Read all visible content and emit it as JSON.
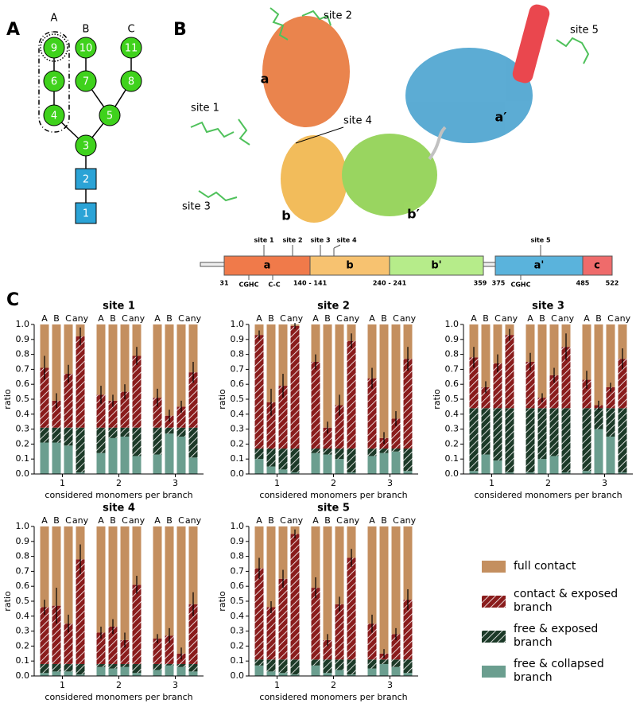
{
  "panel_labels": [
    "A",
    "B",
    "C"
  ],
  "glycan": {
    "branches": [
      "A",
      "B",
      "C"
    ],
    "nodes": [
      "9",
      "10",
      "11",
      "6",
      "7",
      "8",
      "4",
      "5",
      "3",
      "2",
      "1"
    ]
  },
  "structure": {
    "sites": [
      "site 2",
      "site 1",
      "site 4",
      "site 3",
      "site 5"
    ],
    "domains": [
      "a",
      "b",
      "b′",
      "a′"
    ]
  },
  "domain_bar": {
    "segments": [
      "a",
      "b",
      "b'",
      "a'",
      "c"
    ],
    "boundaries": [
      "31",
      "140 - 141",
      "240 - 241",
      "359",
      "375",
      "485",
      "522"
    ],
    "motifs": [
      "CGHC",
      "C-C",
      "CGHC"
    ],
    "sites": [
      "site 1",
      "site 2",
      "site 3",
      "site 4",
      "site 5"
    ]
  },
  "chart_data": [
    {
      "type": "stacked-bar",
      "title": "site 1",
      "ylabel": "ratio",
      "xlabel": "considered monomers per branch",
      "groups": [
        "1",
        "2",
        "3"
      ],
      "categories": [
        "A",
        "B",
        "C",
        "any",
        "A",
        "B",
        "C",
        "any",
        "A",
        "B",
        "C",
        "any"
      ],
      "ylim": [
        0,
        1
      ],
      "yticks": [
        {
          "value": 0,
          "label": "0.0"
        },
        0.1,
        0.2,
        0.3,
        0.4,
        0.5,
        0.6,
        0.7,
        0.8,
        0.9,
        {
          "value": 1,
          "label": "1.0"
        }
      ],
      "series": [
        {
          "name": "free & collapsed branch",
          "color": "#6b9e8f",
          "hatch": false,
          "values": [
            0.21,
            0.21,
            0.19,
            0.01,
            0.14,
            0.24,
            0.25,
            0.12,
            0.13,
            0.27,
            0.25,
            0.11
          ]
        },
        {
          "name": "free & exposed branch",
          "color": "#1c3a28",
          "hatch": true,
          "values": [
            0.1,
            0.1,
            0.12,
            0.3,
            0.17,
            0.07,
            0.06,
            0.19,
            0.18,
            0.04,
            0.06,
            0.2
          ]
        },
        {
          "name": "contact & exposed branch",
          "color": "#8a1c1c",
          "hatch": true,
          "values": [
            0.4,
            0.18,
            0.36,
            0.61,
            0.22,
            0.18,
            0.24,
            0.48,
            0.2,
            0.08,
            0.14,
            0.37
          ],
          "errors": [
            0.08,
            0.05,
            0.06,
            0.06,
            0.06,
            0.04,
            0.05,
            0.06,
            0.06,
            0.04,
            0.04,
            0.07
          ]
        },
        {
          "name": "full contact",
          "color": "#c48f5f",
          "hatch": false,
          "values": [
            0.29,
            0.51,
            0.33,
            0.08,
            0.47,
            0.51,
            0.45,
            0.21,
            0.49,
            0.61,
            0.55,
            0.32
          ]
        }
      ]
    },
    {
      "type": "stacked-bar",
      "title": "site 2",
      "ylabel": "ratio",
      "xlabel": "considered monomers per branch",
      "groups": [
        "1",
        "2",
        "3"
      ],
      "categories": [
        "A",
        "B",
        "C",
        "any",
        "A",
        "B",
        "C",
        "any",
        "A",
        "B",
        "C",
        "any"
      ],
      "ylim": [
        0,
        1
      ],
      "yticks": [
        {
          "value": 0,
          "label": "0.0"
        },
        0.1,
        0.2,
        0.3,
        0.4,
        0.5,
        0.6,
        0.7,
        0.8,
        0.9,
        {
          "value": 1,
          "label": "1.0"
        }
      ],
      "series": [
        {
          "name": "free & collapsed branch",
          "color": "#6b9e8f",
          "hatch": false,
          "values": [
            0.1,
            0.05,
            0.03,
            0.01,
            0.14,
            0.13,
            0.1,
            0.01,
            0.12,
            0.14,
            0.15,
            0.02
          ]
        },
        {
          "name": "free & exposed branch",
          "color": "#1c3a28",
          "hatch": true,
          "values": [
            0.07,
            0.12,
            0.14,
            0.16,
            0.03,
            0.04,
            0.07,
            0.16,
            0.05,
            0.03,
            0.02,
            0.15
          ]
        },
        {
          "name": "contact & exposed branch",
          "color": "#8a1c1c",
          "hatch": true,
          "values": [
            0.76,
            0.31,
            0.42,
            0.82,
            0.58,
            0.14,
            0.29,
            0.72,
            0.47,
            0.07,
            0.2,
            0.6
          ],
          "errors": [
            0.03,
            0.09,
            0.08,
            0.02,
            0.05,
            0.04,
            0.07,
            0.05,
            0.07,
            0.04,
            0.05,
            0.08
          ]
        },
        {
          "name": "full contact",
          "color": "#c48f5f",
          "hatch": false,
          "values": [
            0.07,
            0.52,
            0.41,
            0.01,
            0.25,
            0.69,
            0.54,
            0.11,
            0.36,
            0.76,
            0.63,
            0.23
          ]
        }
      ]
    },
    {
      "type": "stacked-bar",
      "title": "site 3",
      "ylabel": "ratio",
      "xlabel": "considered monomers per branch",
      "groups": [
        "1",
        "2",
        "3"
      ],
      "categories": [
        "A",
        "B",
        "C",
        "any",
        "A",
        "B",
        "C",
        "any",
        "A",
        "B",
        "C",
        "any"
      ],
      "ylim": [
        0,
        1
      ],
      "yticks": [
        {
          "value": 0,
          "label": "0.0"
        },
        0.1,
        0.2,
        0.3,
        0.4,
        0.5,
        0.6,
        0.7,
        0.8,
        0.9,
        {
          "value": 1,
          "label": "1.0"
        }
      ],
      "series": [
        {
          "name": "free & collapsed branch",
          "color": "#6b9e8f",
          "hatch": false,
          "values": [
            0.02,
            0.13,
            0.09,
            0.01,
            0.01,
            0.1,
            0.12,
            0.01,
            0.02,
            0.3,
            0.25,
            0.01
          ]
        },
        {
          "name": "free & exposed branch",
          "color": "#1c3a28",
          "hatch": true,
          "values": [
            0.42,
            0.31,
            0.35,
            0.43,
            0.43,
            0.34,
            0.32,
            0.43,
            0.42,
            0.14,
            0.19,
            0.43
          ]
        },
        {
          "name": "contact & exposed branch",
          "color": "#8a1c1c",
          "hatch": true,
          "values": [
            0.34,
            0.14,
            0.3,
            0.49,
            0.31,
            0.07,
            0.22,
            0.41,
            0.19,
            0.02,
            0.14,
            0.33
          ],
          "errors": [
            0.07,
            0.04,
            0.06,
            0.04,
            0.06,
            0.03,
            0.05,
            0.09,
            0.06,
            0.03,
            0.03,
            0.07
          ]
        },
        {
          "name": "full contact",
          "color": "#c48f5f",
          "hatch": false,
          "values": [
            0.22,
            0.42,
            0.26,
            0.07,
            0.25,
            0.49,
            0.34,
            0.15,
            0.37,
            0.54,
            0.42,
            0.23
          ]
        }
      ]
    },
    {
      "type": "stacked-bar",
      "title": "site 4",
      "ylabel": "ratio",
      "xlabel": "considered monomers per branch",
      "groups": [
        "1",
        "2",
        "3"
      ],
      "categories": [
        "A",
        "B",
        "C",
        "any",
        "A",
        "B",
        "C",
        "any",
        "A",
        "B",
        "C",
        "any"
      ],
      "ylim": [
        0,
        1
      ],
      "yticks": [
        {
          "value": 0,
          "label": "0.0"
        },
        0.1,
        0.2,
        0.3,
        0.4,
        0.5,
        0.6,
        0.7,
        0.8,
        0.9,
        {
          "value": 1,
          "label": "1.0"
        }
      ],
      "series": [
        {
          "name": "free & collapsed branch",
          "color": "#6b9e8f",
          "hatch": false,
          "values": [
            0.02,
            0.03,
            0.03,
            0.01,
            0.06,
            0.05,
            0.06,
            0.02,
            0.04,
            0.07,
            0.06,
            0.03
          ]
        },
        {
          "name": "free & exposed branch",
          "color": "#1c3a28",
          "hatch": true,
          "values": [
            0.06,
            0.05,
            0.05,
            0.07,
            0.02,
            0.03,
            0.02,
            0.06,
            0.04,
            0.01,
            0.02,
            0.05
          ]
        },
        {
          "name": "contact & exposed branch",
          "color": "#8a1c1c",
          "hatch": true,
          "values": [
            0.38,
            0.39,
            0.27,
            0.7,
            0.21,
            0.25,
            0.16,
            0.53,
            0.17,
            0.19,
            0.07,
            0.4
          ],
          "errors": [
            0.05,
            0.12,
            0.06,
            0.1,
            0.04,
            0.05,
            0.05,
            0.06,
            0.03,
            0.05,
            0.04,
            0.08
          ]
        },
        {
          "name": "full contact",
          "color": "#c48f5f",
          "hatch": false,
          "values": [
            0.54,
            0.53,
            0.65,
            0.22,
            0.71,
            0.67,
            0.76,
            0.39,
            0.75,
            0.73,
            0.85,
            0.52
          ]
        }
      ]
    },
    {
      "type": "stacked-bar",
      "title": "site 5",
      "ylabel": "ratio",
      "xlabel": "considered monomers per branch",
      "groups": [
        "1",
        "2",
        "3"
      ],
      "categories": [
        "A",
        "B",
        "C",
        "any",
        "A",
        "B",
        "C",
        "any",
        "A",
        "B",
        "C",
        "any"
      ],
      "ylim": [
        0,
        1
      ],
      "yticks": [
        {
          "value": 0,
          "label": "0.0"
        },
        0.1,
        0.2,
        0.3,
        0.4,
        0.5,
        0.6,
        0.7,
        0.8,
        0.9,
        {
          "value": 1,
          "label": "1.0"
        }
      ],
      "series": [
        {
          "name": "free & collapsed branch",
          "color": "#6b9e8f",
          "hatch": false,
          "values": [
            0.07,
            0.03,
            0.02,
            0.01,
            0.07,
            0.02,
            0.04,
            0.01,
            0.05,
            0.08,
            0.06,
            0.02
          ]
        },
        {
          "name": "free & exposed branch",
          "color": "#1c3a28",
          "hatch": true,
          "values": [
            0.04,
            0.08,
            0.09,
            0.1,
            0.04,
            0.09,
            0.07,
            0.1,
            0.06,
            0.03,
            0.05,
            0.09
          ]
        },
        {
          "name": "contact & exposed branch",
          "color": "#8a1c1c",
          "hatch": true,
          "values": [
            0.61,
            0.35,
            0.54,
            0.84,
            0.48,
            0.13,
            0.37,
            0.68,
            0.24,
            0.04,
            0.17,
            0.4
          ],
          "errors": [
            0.07,
            0.04,
            0.06,
            0.03,
            0.07,
            0.04,
            0.05,
            0.06,
            0.06,
            0.03,
            0.04,
            0.07
          ]
        },
        {
          "name": "full contact",
          "color": "#c48f5f",
          "hatch": false,
          "values": [
            0.28,
            0.54,
            0.35,
            0.05,
            0.41,
            0.76,
            0.52,
            0.21,
            0.65,
            0.85,
            0.72,
            0.49
          ]
        }
      ]
    }
  ]
}
